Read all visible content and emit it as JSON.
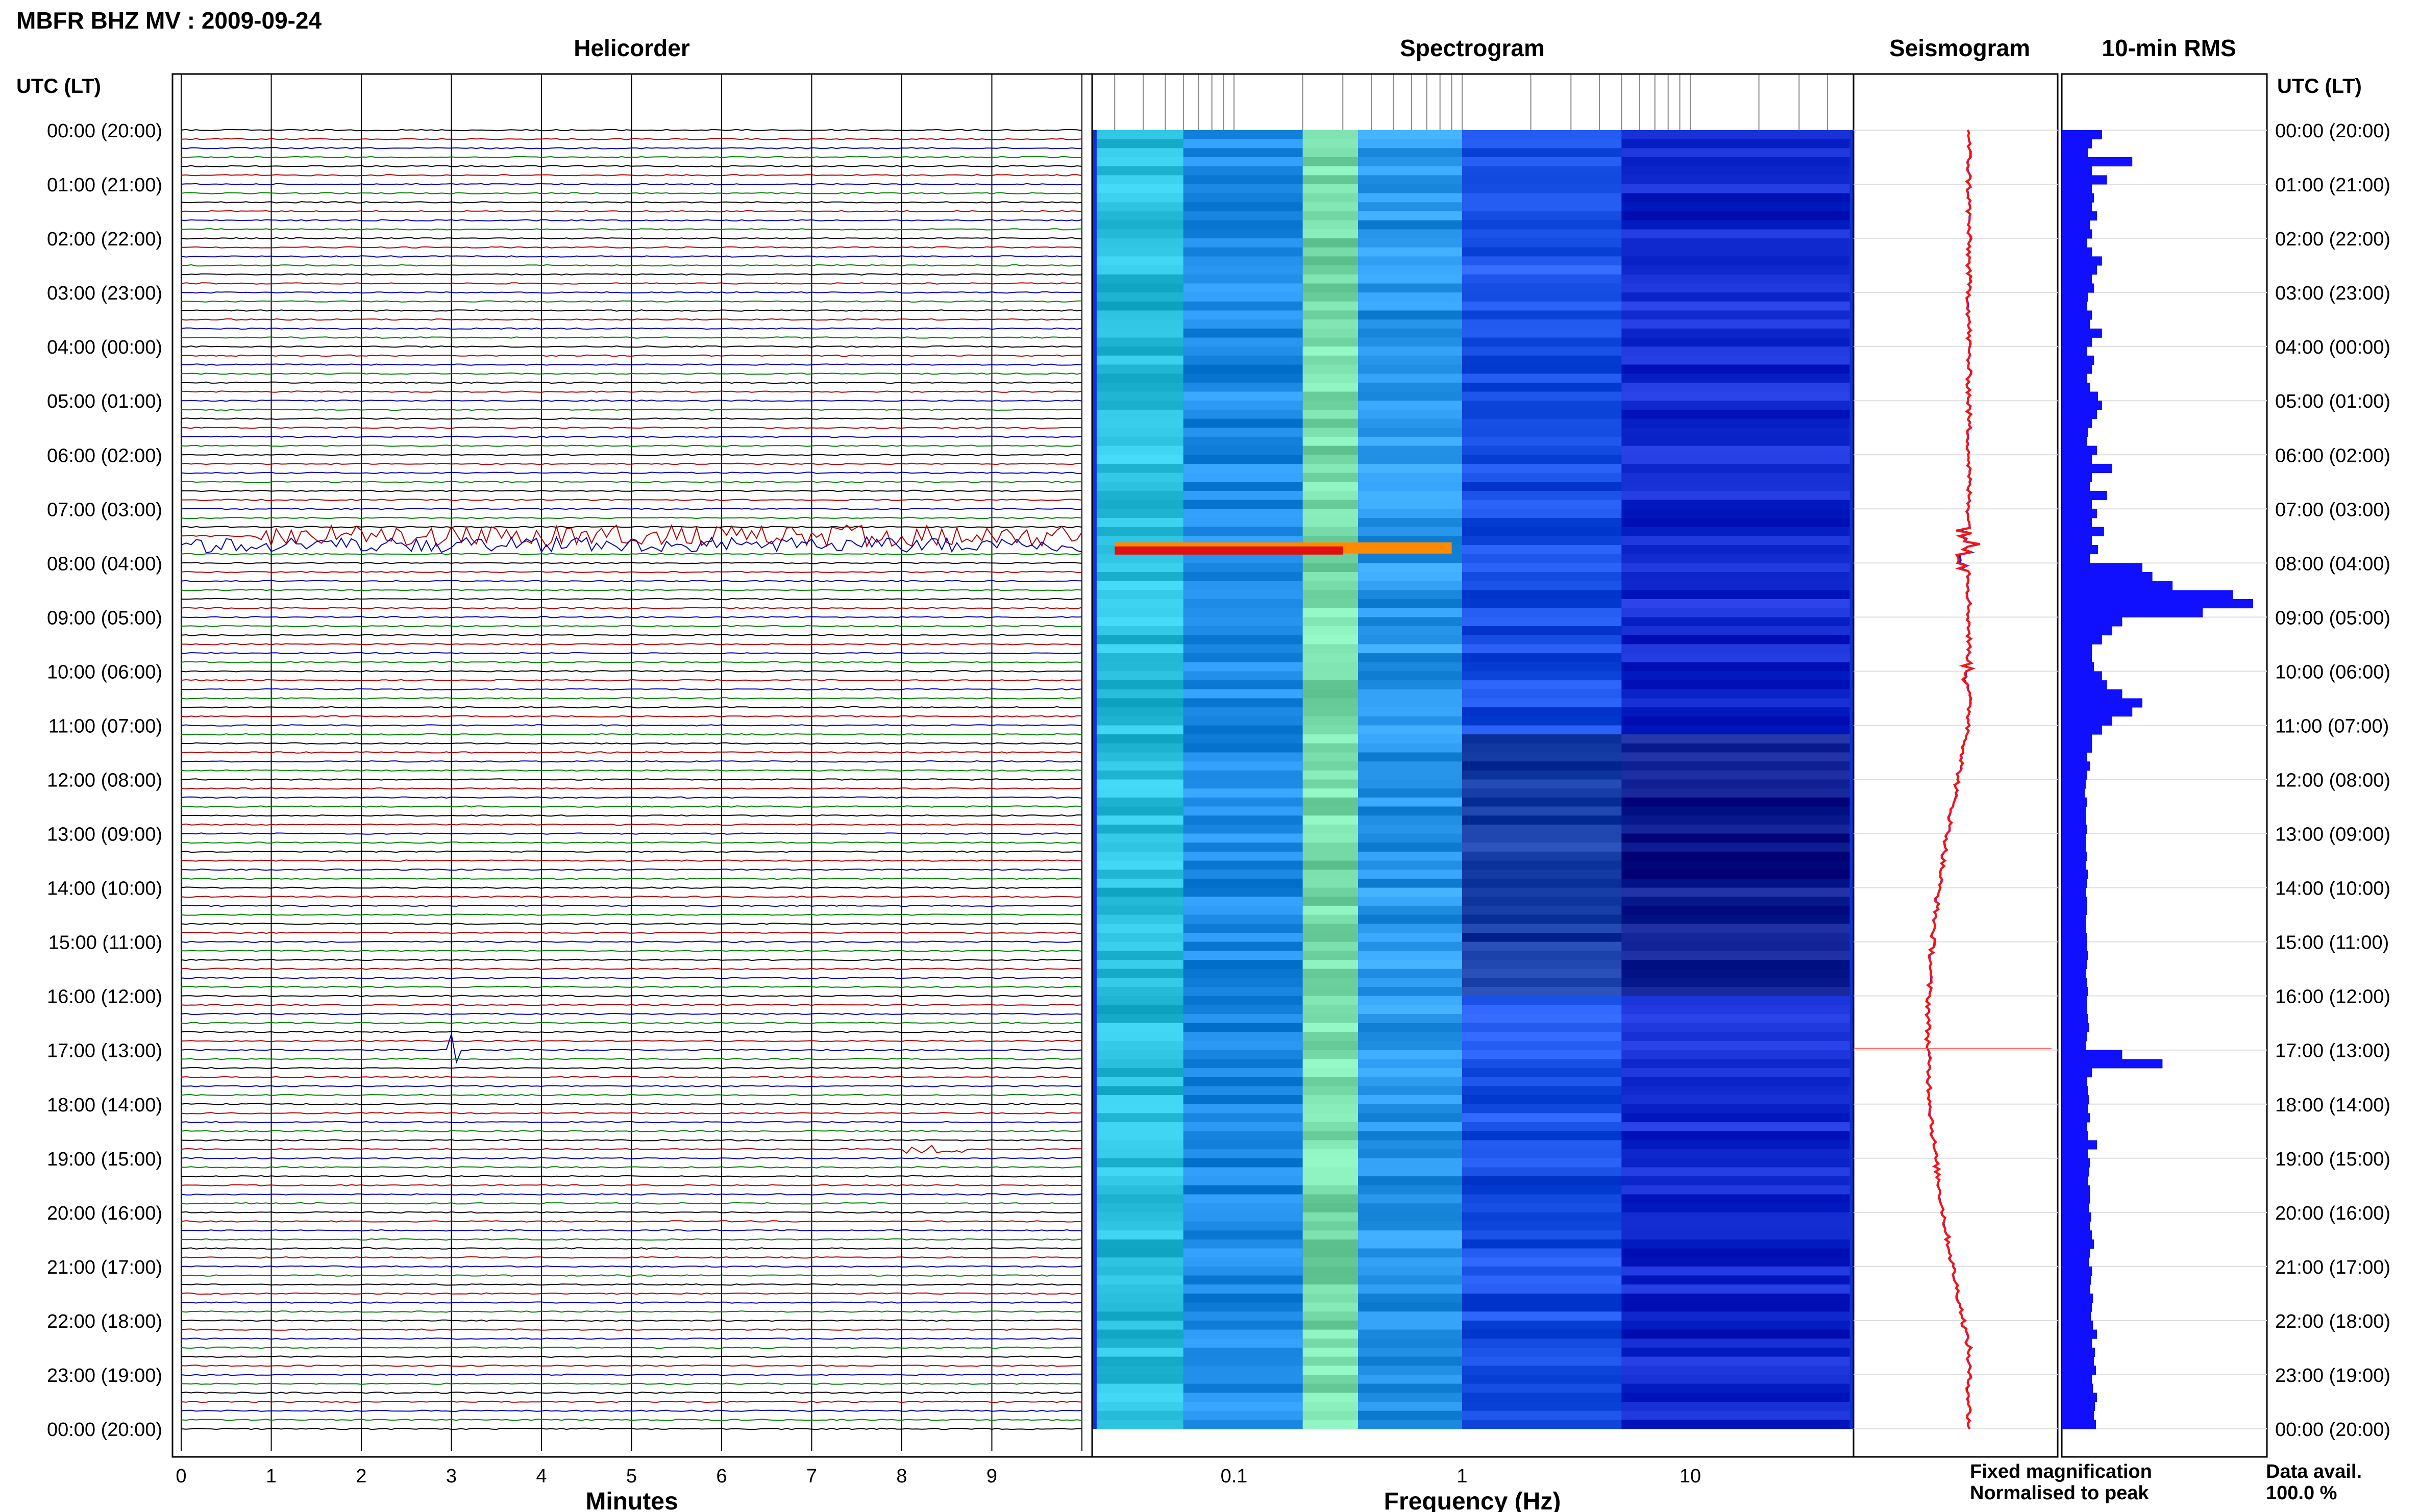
{
  "title": "MBFR BHZ MV : 2009-09-24",
  "panels": {
    "helicorder": "Helicorder",
    "spectrogram": "Spectrogram",
    "seismogram": "Seismogram",
    "rms": "10-min RMS"
  },
  "axis": {
    "left_time_label": "UTC (LT)",
    "right_time_label": "UTC (LT)",
    "minutes_label": "Minutes",
    "frequency_label": "Frequency (Hz)"
  },
  "legend": {
    "fixed": "Fixed magnification",
    "normalised": "Normalised to peak",
    "fixed_color": "#1010ff",
    "normalised_color": "#ff1010"
  },
  "data_avail": {
    "label": "Data avail.",
    "value": "100.0 %"
  },
  "chart_data": {
    "type": "helicorder-spectrogram",
    "time_ticks": [
      "00:00 (20:00)",
      "01:00 (21:00)",
      "02:00 (22:00)",
      "03:00 (23:00)",
      "04:00 (00:00)",
      "05:00 (01:00)",
      "06:00 (02:00)",
      "07:00 (03:00)",
      "08:00 (04:00)",
      "09:00 (05:00)",
      "10:00 (06:00)",
      "11:00 (07:00)",
      "12:00 (08:00)",
      "13:00 (09:00)",
      "14:00 (10:00)",
      "15:00 (11:00)",
      "16:00 (12:00)",
      "17:00 (13:00)",
      "18:00 (14:00)",
      "19:00 (15:00)",
      "20:00 (16:00)",
      "21:00 (17:00)",
      "22:00 (18:00)",
      "23:00 (19:00)",
      "00:00 (20:00)"
    ],
    "minute_ticks": [
      "0",
      "1",
      "2",
      "3",
      "4",
      "5",
      "6",
      "7",
      "8",
      "9"
    ],
    "xlim_minutes": [
      0,
      10
    ],
    "frequency_ticks": [
      {
        "label": "0.1",
        "value": 0.1
      },
      {
        "label": "1",
        "value": 1
      },
      {
        "label": "10",
        "value": 10
      }
    ],
    "frequency_range_hz": [
      0.025,
      50
    ],
    "trace_colors": [
      "#000000",
      "#b00000",
      "#0000b0",
      "#008000"
    ],
    "traces_per_hour": 6,
    "helicorder_events": [
      {
        "hour": 7.55,
        "minute_start": 0.8,
        "minute_end": 10,
        "amplitude": 3.0
      },
      {
        "hour": 7.7,
        "minute_start": 0.0,
        "minute_end": 10,
        "amplitude": 2.2
      },
      {
        "hour": 16.97,
        "minute_start": 2.95,
        "minute_end": 3.1,
        "amplitude": 5.0
      },
      {
        "hour": 18.8,
        "minute_start": 7.9,
        "minute_end": 8.7,
        "amplitude": 1.2
      },
      {
        "hour": 20.66,
        "minute_start": 1.95,
        "minute_end": 2.1,
        "amplitude": 1.4
      }
    ],
    "spectrogram_events": [
      {
        "hour": 7.75,
        "freq_start": 0.03,
        "freq_end": 0.9
      }
    ],
    "rms_10min": [
      4,
      3,
      2.6,
      7,
      3,
      4.5,
      3,
      3.2,
      3,
      3.5,
      2.8,
      3,
      2.5,
      3,
      4,
      3.5,
      3,
      3.2,
      2.6,
      2.5,
      3,
      2.8,
      4,
      3,
      2.5,
      3.2,
      3,
      2.5,
      2.8,
      3.6,
      4,
      3.5,
      3,
      2.6,
      2.5,
      3.5,
      3,
      5,
      3,
      2.8,
      4.5,
      3,
      3.5,
      3,
      4.2,
      3,
      3.6,
      2.8,
      8,
      9,
      11,
      17,
      19,
      14,
      6,
      5,
      4,
      3,
      3,
      3.2,
      4,
      4.5,
      6,
      8,
      7,
      5,
      4,
      3,
      3,
      2.5,
      2.8,
      2.5,
      2.4,
      2.3,
      2.5,
      2.4,
      2.4,
      2.5,
      2.4,
      2.4,
      2.5,
      2.4,
      2.6,
      2.5,
      2.4,
      2.5,
      2.5,
      2.4,
      2.4,
      2.5,
      2.5,
      2.6,
      2.5,
      2.4,
      2.5,
      2.6,
      2.5,
      2.5,
      2.6,
      2.7,
      2.5,
      2.4,
      6,
      10,
      3,
      2.5,
      2.6,
      2.7,
      2.6,
      2.8,
      2.5,
      2.6,
      3.5,
      2.6,
      2.8,
      2.7,
      2.6,
      2.8,
      2.8,
      2.7,
      2.9,
      2.8,
      3,
      3.2,
      2.8,
      2.7,
      3,
      2.9,
      2.8,
      3.1,
      3,
      2.9,
      3.1,
      3.5,
      3,
      3.3,
      3.2,
      3.4,
      3,
      3.1,
      3.5,
      3.3,
      3.2,
      3.4
    ],
    "rms_unit": "relative"
  }
}
